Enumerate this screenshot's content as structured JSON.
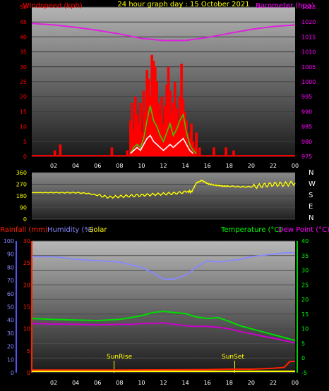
{
  "header": {
    "title": "24 hour graph day : 15 October 2021",
    "left_title": "Windspeed (kph)",
    "right_title": "Barometer (hpa)"
  },
  "colors": {
    "wind": "#ff0000",
    "gust": "#33cc00",
    "avg": "#ffffff",
    "baro": "#dd22dd",
    "dir": "#ffff00",
    "temp": "#00dd00",
    "dew": "#cc00cc",
    "humidity": "#8888ff",
    "rain": "#ff2200"
  },
  "hour_ticks": [
    "02",
    "04",
    "06",
    "08",
    "10",
    "12",
    "14",
    "16",
    "18",
    "20",
    "22",
    "00"
  ],
  "chart_data": [
    {
      "type": "bar",
      "title": "24 hour graph day : 15 October 2021",
      "ylabel": "Windspeed (kph)",
      "y2label": "Barometer (hpa)",
      "ylim": [
        0,
        50
      ],
      "y2lim": [
        975,
        1025
      ],
      "yticks": [
        "0",
        "5",
        "10",
        "15",
        "20",
        "25",
        "30",
        "35",
        "40",
        "45",
        "50"
      ],
      "y2ticks": [
        "975",
        "980",
        "985",
        "990",
        "995",
        "1000",
        "1005",
        "1010",
        "1015",
        "1020",
        "1025"
      ],
      "wind_gust": [
        [
          2.1,
          2
        ],
        [
          2.6,
          4
        ],
        [
          7.3,
          3
        ],
        [
          8.7,
          2
        ],
        [
          9.0,
          12
        ],
        [
          9.15,
          18
        ],
        [
          9.3,
          9
        ],
        [
          9.45,
          20
        ],
        [
          9.6,
          14
        ],
        [
          9.75,
          11
        ],
        [
          9.9,
          18
        ],
        [
          10.05,
          8
        ],
        [
          10.2,
          22
        ],
        [
          10.35,
          15
        ],
        [
          10.5,
          29
        ],
        [
          10.65,
          26
        ],
        [
          10.8,
          20
        ],
        [
          10.95,
          34
        ],
        [
          11.1,
          32
        ],
        [
          11.25,
          30
        ],
        [
          11.4,
          25
        ],
        [
          11.55,
          18
        ],
        [
          11.7,
          14
        ],
        [
          11.85,
          20
        ],
        [
          12.0,
          11
        ],
        [
          12.15,
          17
        ],
        [
          12.3,
          24
        ],
        [
          12.45,
          30
        ],
        [
          12.6,
          22
        ],
        [
          12.75,
          14
        ],
        [
          12.9,
          18
        ],
        [
          13.05,
          25
        ],
        [
          13.2,
          16
        ],
        [
          13.35,
          12
        ],
        [
          13.5,
          20
        ],
        [
          13.65,
          31
        ],
        [
          13.8,
          19
        ],
        [
          13.95,
          15
        ],
        [
          14.1,
          12
        ],
        [
          14.25,
          8
        ],
        [
          14.4,
          6
        ],
        [
          14.55,
          11
        ],
        [
          14.7,
          5
        ],
        [
          14.85,
          3
        ],
        [
          15.0,
          8
        ],
        [
          15.3,
          3
        ],
        [
          16.6,
          3
        ],
        [
          17.7,
          3
        ],
        [
          18.4,
          2
        ]
      ],
      "wind_avg": [
        [
          9.0,
          1
        ],
        [
          9.3,
          3
        ],
        [
          9.6,
          4
        ],
        [
          9.9,
          3
        ],
        [
          10.2,
          6
        ],
        [
          10.5,
          12
        ],
        [
          10.8,
          17
        ],
        [
          11.1,
          12
        ],
        [
          11.4,
          10
        ],
        [
          11.7,
          7
        ],
        [
          12.0,
          5
        ],
        [
          12.3,
          8
        ],
        [
          12.6,
          11
        ],
        [
          12.9,
          7
        ],
        [
          13.2,
          9
        ],
        [
          13.5,
          12
        ],
        [
          13.8,
          14
        ],
        [
          14.1,
          8
        ],
        [
          14.4,
          4
        ],
        [
          14.7,
          2
        ],
        [
          15.0,
          1
        ]
      ],
      "wind_speed": [
        [
          9.0,
          1
        ],
        [
          9.3,
          2
        ],
        [
          9.6,
          3
        ],
        [
          9.9,
          2
        ],
        [
          10.2,
          4
        ],
        [
          10.5,
          6
        ],
        [
          10.8,
          7
        ],
        [
          11.1,
          5
        ],
        [
          11.4,
          4
        ],
        [
          11.7,
          3
        ],
        [
          12.0,
          2
        ],
        [
          12.3,
          3
        ],
        [
          12.6,
          4
        ],
        [
          12.9,
          3
        ],
        [
          13.2,
          4
        ],
        [
          13.5,
          5
        ],
        [
          13.8,
          6
        ],
        [
          14.1,
          4
        ],
        [
          14.4,
          2
        ],
        [
          14.7,
          1
        ]
      ],
      "barometer": [
        [
          0,
          1019.5
        ],
        [
          2,
          1019.0
        ],
        [
          4,
          1018.2
        ],
        [
          6,
          1017.2
        ],
        [
          8,
          1016.0
        ],
        [
          10,
          1014.5
        ],
        [
          12,
          1013.8
        ],
        [
          14,
          1013.8
        ],
        [
          16,
          1014.8
        ],
        [
          18,
          1016.2
        ],
        [
          20,
          1017.5
        ],
        [
          22,
          1018.5
        ],
        [
          24,
          1019.0
        ]
      ]
    },
    {
      "type": "scatter",
      "ylabel_right": [
        "N",
        "W",
        "S",
        "E",
        "N"
      ],
      "ylim": [
        0,
        360
      ],
      "yticks": [
        "0",
        "90",
        "180",
        "270",
        "360"
      ],
      "direction": [
        [
          0,
          205
        ],
        [
          2,
          205
        ],
        [
          4,
          205
        ],
        [
          5,
          200
        ],
        [
          6,
          185
        ],
        [
          7,
          170
        ],
        [
          8,
          175
        ],
        [
          9,
          180
        ],
        [
          10,
          185
        ],
        [
          11,
          190
        ],
        [
          12,
          195
        ],
        [
          13,
          200
        ],
        [
          14,
          210
        ],
        [
          14.6,
          215
        ],
        [
          15.0,
          280
        ],
        [
          15.5,
          300
        ],
        [
          16,
          275
        ],
        [
          16.5,
          265
        ],
        [
          17,
          260
        ],
        [
          17.5,
          255
        ],
        [
          18,
          255
        ],
        [
          19,
          250
        ],
        [
          20,
          250
        ],
        [
          21,
          260
        ],
        [
          22,
          270
        ],
        [
          23,
          270
        ],
        [
          24,
          280
        ]
      ]
    },
    {
      "type": "line",
      "ylabels": [
        "Rainfall (mm)",
        "Humidity (%)",
        "Solar",
        "Temperature (°C)",
        "Dew Point (°C)"
      ],
      "humidity_ticks": [
        "0",
        "10",
        "20",
        "30",
        "40",
        "50",
        "60",
        "70",
        "80",
        "90",
        "100"
      ],
      "rain_ticks": [
        "0",
        "5",
        "10",
        "15",
        "20",
        "25",
        "30"
      ],
      "temp_ticks": [
        "-5",
        "0",
        "5",
        "10",
        "15",
        "20",
        "25",
        "30",
        "35",
        "40"
      ],
      "ylim_temp": [
        -5,
        40
      ],
      "ylim_humidity": [
        0,
        100
      ],
      "ylim_rain": [
        0,
        30
      ],
      "annotations": [
        "SunRise",
        "SunSet"
      ],
      "sunrise_hour": 7.5,
      "sunset_hour": 18.5,
      "humidity": [
        [
          0,
          88
        ],
        [
          2,
          88
        ],
        [
          4,
          86
        ],
        [
          6,
          85
        ],
        [
          8,
          84
        ],
        [
          9,
          82
        ],
        [
          10,
          80
        ],
        [
          11,
          76
        ],
        [
          12,
          71
        ],
        [
          13,
          71
        ],
        [
          14,
          74
        ],
        [
          15,
          80
        ],
        [
          16,
          85
        ],
        [
          17,
          84
        ],
        [
          18,
          85
        ],
        [
          19,
          86
        ],
        [
          20,
          88
        ],
        [
          21,
          89
        ],
        [
          22,
          90
        ],
        [
          23,
          91
        ],
        [
          24,
          91
        ]
      ],
      "temperature": [
        [
          0,
          13.5
        ],
        [
          2,
          13.2
        ],
        [
          4,
          13.0
        ],
        [
          6,
          12.8
        ],
        [
          8,
          13.2
        ],
        [
          9,
          13.8
        ],
        [
          10,
          14.5
        ],
        [
          11,
          15.5
        ],
        [
          12,
          16.0
        ],
        [
          13,
          15.5
        ],
        [
          14,
          15.2
        ],
        [
          15,
          14.0
        ],
        [
          16,
          13.5
        ],
        [
          17,
          13.8
        ],
        [
          18,
          12.5
        ],
        [
          19,
          11.0
        ],
        [
          20,
          10.0
        ],
        [
          21,
          9.0
        ],
        [
          22,
          8.0
        ],
        [
          23,
          7.0
        ],
        [
          24,
          6.0
        ]
      ],
      "dew_point": [
        [
          0,
          11.8
        ],
        [
          2,
          11.6
        ],
        [
          4,
          11.5
        ],
        [
          6,
          11.3
        ],
        [
          8,
          11.5
        ],
        [
          9,
          11.5
        ],
        [
          10,
          11.8
        ],
        [
          11,
          11.8
        ],
        [
          12,
          12.0
        ],
        [
          13,
          11.5
        ],
        [
          14,
          11.0
        ],
        [
          15,
          10.8
        ],
        [
          16,
          10.8
        ],
        [
          17,
          10.5
        ],
        [
          18,
          10.0
        ],
        [
          19,
          9.0
        ],
        [
          20,
          8.3
        ],
        [
          21,
          7.5
        ],
        [
          22,
          6.8
        ],
        [
          23,
          6.0
        ],
        [
          24,
          5.2
        ]
      ],
      "rain": [
        [
          0,
          0.6
        ],
        [
          8,
          0.6
        ],
        [
          16,
          0.7
        ],
        [
          18,
          0.8
        ],
        [
          20,
          0.8
        ],
        [
          22,
          1.0
        ],
        [
          23,
          1.2
        ],
        [
          23.5,
          2.5
        ],
        [
          24,
          2.6
        ]
      ]
    }
  ]
}
